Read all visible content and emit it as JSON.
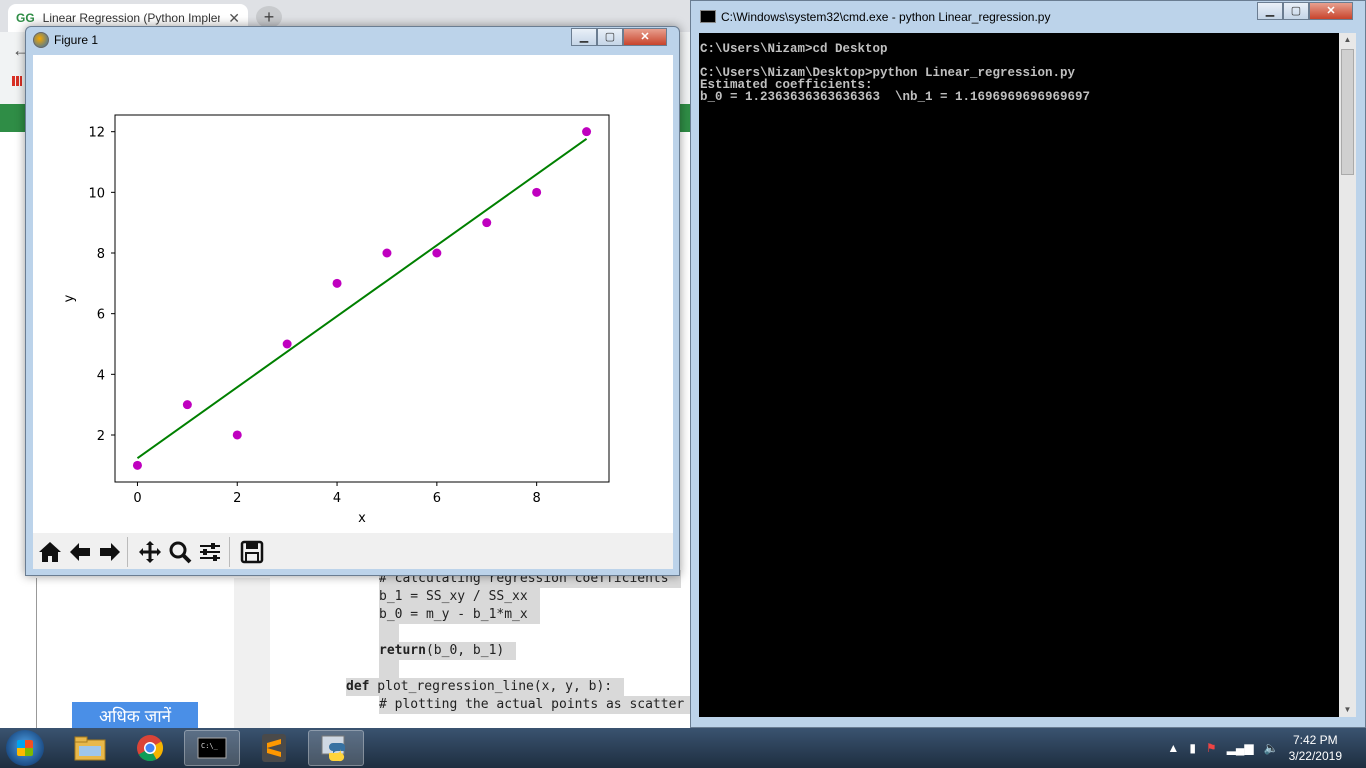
{
  "browser": {
    "tab_title": "Linear Regression (Python Implem",
    "tab_favicon": "GG",
    "side_cta": "अधिक जानें",
    "code_lines": [
      {
        "text": "# calculating regression coefficients",
        "indent": 1,
        "kw": ""
      },
      {
        "text": "b_1 = SS_xy / SS_xx",
        "indent": 1,
        "kw": ""
      },
      {
        "text": "b_0 = m_y - b_1*m_x",
        "indent": 1,
        "kw": ""
      },
      {
        "text": "",
        "indent": 1,
        "kw": ""
      },
      {
        "text": "(b_0, b_1)",
        "indent": 1,
        "kw": "return"
      },
      {
        "text": "",
        "indent": 1,
        "kw": ""
      },
      {
        "text": "plot_regression_line(x, y, b):",
        "indent": 0,
        "kw": "def"
      },
      {
        "text": "# plotting the actual points as scatter plot",
        "indent": 1,
        "kw": ""
      }
    ]
  },
  "figure": {
    "title": "Figure 1",
    "toolbar": [
      {
        "name": "home-icon",
        "glyph": "home"
      },
      {
        "name": "back-arrow-icon",
        "glyph": "back"
      },
      {
        "name": "forward-arrow-icon",
        "glyph": "forward"
      },
      {
        "name": "pan-icon",
        "glyph": "pan"
      },
      {
        "name": "zoom-icon",
        "glyph": "zoom"
      },
      {
        "name": "configure-subplots-icon",
        "glyph": "config"
      },
      {
        "name": "save-icon",
        "glyph": "save"
      }
    ]
  },
  "chart_data": {
    "type": "scatter",
    "title": "",
    "xlabel": "x",
    "ylabel": "y",
    "xlim": [
      -0.45,
      9.45
    ],
    "ylim": [
      0.45,
      12.55
    ],
    "xticks": [
      0,
      2,
      4,
      6,
      8
    ],
    "yticks": [
      2,
      4,
      6,
      8,
      10,
      12
    ],
    "grid": false,
    "series": [
      {
        "mark": "scatter",
        "color": "#bf00bf",
        "x": [
          0,
          1,
          2,
          3,
          4,
          5,
          6,
          7,
          8,
          9
        ],
        "y": [
          1,
          3,
          2,
          5,
          7,
          8,
          8,
          9,
          10,
          12
        ]
      },
      {
        "mark": "line",
        "color": "#008000",
        "x": [
          0,
          1,
          2,
          3,
          4,
          5,
          6,
          7,
          8,
          9
        ],
        "y": [
          1.2364,
          2.4061,
          3.5758,
          4.7455,
          5.9152,
          7.0848,
          8.2545,
          9.4242,
          10.5939,
          11.7636
        ]
      }
    ]
  },
  "cmd": {
    "title": "C:\\Windows\\system32\\cmd.exe - python  Linear_regression.py",
    "lines": [
      "C:\\Users\\Nizam>cd Desktop",
      "",
      "C:\\Users\\Nizam\\Desktop>python Linear_regression.py",
      "Estimated coefficients:",
      "b_0 = 1.2363636363636363  \\nb_1 = 1.1696969696969697"
    ]
  },
  "taskbar": {
    "time": "7:42 PM",
    "date": "3/22/2019",
    "apps": [
      "file-explorer",
      "chrome",
      "command-prompt",
      "sublime-text",
      "python"
    ]
  }
}
